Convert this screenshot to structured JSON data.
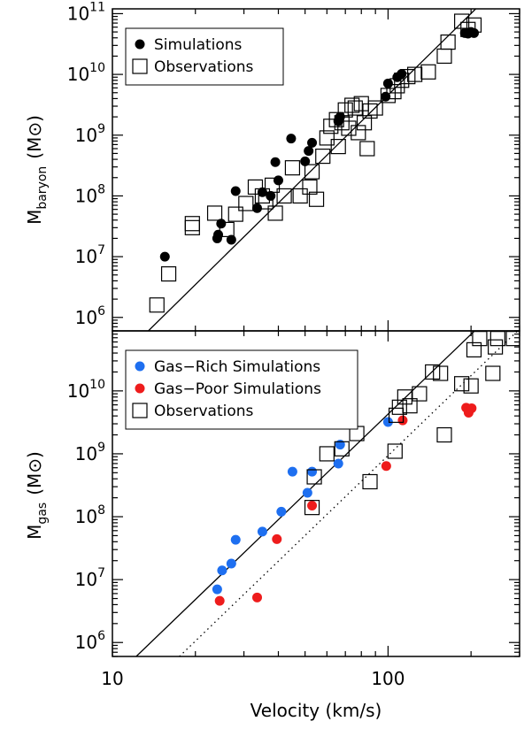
{
  "chart_data": [
    {
      "type": "scatter",
      "panel": "top",
      "xscale": "log",
      "yscale": "log",
      "xlim": [
        10,
        300
      ],
      "ylim": [
        600000,
        120000000000
      ],
      "ylabel_main": "M",
      "ylabel_sub": "baryon",
      "ylabel_unit": "(M⊙)",
      "yticks": [
        {
          "value": 1000000,
          "base": "10",
          "exp": "6"
        },
        {
          "value": 10000000,
          "base": "10",
          "exp": "7"
        },
        {
          "value": 100000000,
          "base": "10",
          "exp": "8"
        },
        {
          "value": 1000000000,
          "base": "10",
          "exp": "9"
        },
        {
          "value": 10000000000,
          "base": "10",
          "exp": "10"
        },
        {
          "value": 100000000000,
          "base": "10",
          "exp": "11"
        }
      ],
      "legend": {
        "placement": "top-left",
        "entries": [
          {
            "label": "Simulations",
            "marker": "filled-circle",
            "color": "#000000"
          },
          {
            "label": "Observations",
            "marker": "open-square",
            "color": "#000000"
          }
        ]
      },
      "series": [
        {
          "name": "Simulations",
          "marker": "filled-circle",
          "color": "#000000",
          "points": [
            [
              15.5,
              10000000
            ],
            [
              24.0,
              20000000
            ],
            [
              24.2,
              23000000
            ],
            [
              24.8,
              35000000
            ],
            [
              27.0,
              19000000
            ],
            [
              28.0,
              120000000
            ],
            [
              33.5,
              63000000
            ],
            [
              35.0,
              115000000
            ],
            [
              37.5,
              100000000
            ],
            [
              39.0,
              360000000
            ],
            [
              40.0,
              180000000
            ],
            [
              44.5,
              880000000
            ],
            [
              50.0,
              370000000
            ],
            [
              51.5,
              550000000
            ],
            [
              53.0,
              750000000
            ],
            [
              66.0,
              1700000000
            ],
            [
              67.0,
              2000000000
            ],
            [
              98.0,
              4300000000
            ],
            [
              100.0,
              7100000000
            ],
            [
              108.0,
              9000000000
            ],
            [
              112.0,
              10200000000
            ],
            [
              190.0,
              48000000000
            ],
            [
              195.0,
              47000000000
            ],
            [
              200.0,
              50000000000
            ],
            [
              205.0,
              48000000000
            ]
          ]
        },
        {
          "name": "Observations",
          "marker": "open-square",
          "color": "#000000",
          "points": [
            [
              14.5,
              1600000
            ],
            [
              16.0,
              5200000
            ],
            [
              19.5,
              30000000
            ],
            [
              19.5,
              35000000
            ],
            [
              23.5,
              52000000
            ],
            [
              26.0,
              28000000
            ],
            [
              28.0,
              50000000
            ],
            [
              30.5,
              75000000
            ],
            [
              33.0,
              140000000
            ],
            [
              35.0,
              100000000
            ],
            [
              36.0,
              80000000
            ],
            [
              38.0,
              150000000
            ],
            [
              39.0,
              52000000
            ],
            [
              42.0,
              100000000
            ],
            [
              45.0,
              290000000
            ],
            [
              48.0,
              100000000
            ],
            [
              52.0,
              140000000
            ],
            [
              53.0,
              250000000
            ],
            [
              55.0,
              88000000
            ],
            [
              58.0,
              450000000
            ],
            [
              60.0,
              900000000
            ],
            [
              62.0,
              1400000000
            ],
            [
              65.0,
              1800000000
            ],
            [
              66.0,
              650000000
            ],
            [
              68.0,
              1600000000
            ],
            [
              70.0,
              2600000000
            ],
            [
              72.0,
              1300000000
            ],
            [
              74.0,
              3100000000
            ],
            [
              76.0,
              2800000000
            ],
            [
              78.0,
              1100000000
            ],
            [
              80.0,
              3300000000
            ],
            [
              82.0,
              1600000000
            ],
            [
              84.0,
              600000000
            ],
            [
              86.0,
              2500000000
            ],
            [
              90.0,
              2800000000
            ],
            [
              100.0,
              4500000000
            ],
            [
              105.0,
              5200000000
            ],
            [
              108.0,
              6500000000
            ],
            [
              112.0,
              8000000000
            ],
            [
              118.0,
              9200000000
            ],
            [
              125.0,
              10000000000
            ],
            [
              140.0,
              11000000000
            ],
            [
              160.0,
              20000000000
            ],
            [
              165.0,
              34000000000
            ],
            [
              185.0,
              75000000000
            ],
            [
              195.0,
              55000000000
            ],
            [
              205.0,
              65000000000
            ]
          ]
        }
      ],
      "fit_lines": [
        {
          "style": "solid",
          "color": "#000000",
          "from": [
            13.5,
            600000
          ],
          "to": [
            208.0,
            120000000000
          ]
        }
      ]
    },
    {
      "type": "scatter",
      "panel": "bottom",
      "xscale": "log",
      "yscale": "log",
      "xlim": [
        10,
        300
      ],
      "ylim": [
        600000,
        90000000000
      ],
      "xlabel": "Velocity (km/s)",
      "xticks": [
        {
          "value": 10,
          "label": "10"
        },
        {
          "value": 100,
          "label": "100"
        }
      ],
      "ylabel_main": "M",
      "ylabel_sub": "gas",
      "ylabel_unit": "(M⊙)",
      "yticks": [
        {
          "value": 1000000,
          "base": "10",
          "exp": "6"
        },
        {
          "value": 10000000,
          "base": "10",
          "exp": "7"
        },
        {
          "value": 100000000,
          "base": "10",
          "exp": "8"
        },
        {
          "value": 1000000000,
          "base": "10",
          "exp": "9"
        },
        {
          "value": 10000000000,
          "base": "10",
          "exp": "10"
        }
      ],
      "legend": {
        "placement": "top-left",
        "entries": [
          {
            "label": "Gas−Rich Simulations",
            "marker": "filled-circle",
            "color": "#1e6ff0"
          },
          {
            "label": "Gas−Poor Simulations",
            "marker": "filled-circle",
            "color": "#ee1c1c"
          },
          {
            "label": "Observations",
            "marker": "open-square",
            "color": "#000000"
          }
        ]
      },
      "series": [
        {
          "name": "Gas−Rich Simulations",
          "marker": "filled-circle",
          "color": "#1e6ff0",
          "points": [
            [
              24.0,
              7000000
            ],
            [
              25.0,
              14000000
            ],
            [
              27.0,
              18000000
            ],
            [
              28.0,
              43000000
            ],
            [
              35.0,
              58000000
            ],
            [
              41.0,
              120000000
            ],
            [
              45.0,
              520000000
            ],
            [
              51.0,
              240000000
            ],
            [
              53.0,
              520000000
            ],
            [
              66.0,
              700000000
            ],
            [
              67.0,
              1400000000
            ],
            [
              100.0,
              3200000000
            ]
          ]
        },
        {
          "name": "Gas−Poor Simulations",
          "marker": "filled-circle",
          "color": "#ee1c1c",
          "points": [
            [
              24.5,
              4600000
            ],
            [
              33.5,
              5200000
            ],
            [
              39.5,
              44000000
            ],
            [
              53.0,
              150000000
            ],
            [
              98.5,
              640000000
            ],
            [
              113.0,
              3400000000
            ],
            [
              192.0,
              5400000000
            ],
            [
              196.0,
              4500000000
            ],
            [
              201.0,
              5300000000
            ]
          ]
        },
        {
          "name": "Observations",
          "marker": "open-square",
          "color": "#000000",
          "points": [
            [
              53.0,
              140000000
            ],
            [
              54.0,
              430000000
            ],
            [
              60.0,
              1000000000
            ],
            [
              68.0,
              1200000000
            ],
            [
              77.0,
              2100000000
            ],
            [
              86.0,
              360000000
            ],
            [
              106.0,
              1100000000
            ],
            [
              107.0,
              4100000000
            ],
            [
              110.0,
              5500000000
            ],
            [
              115.0,
              8000000000
            ],
            [
              120.0,
              5800000000
            ],
            [
              130.0,
              9000000000
            ],
            [
              145.0,
              20000000000
            ],
            [
              155.0,
              19000000000
            ],
            [
              160.0,
              2000000000
            ],
            [
              185.0,
              13000000000
            ],
            [
              200.0,
              12000000000
            ],
            [
              205.0,
              45000000000
            ],
            [
              215.0,
              68000000000
            ],
            [
              240.0,
              19000000000
            ],
            [
              245.0,
              50000000000
            ],
            [
              250.0,
              68000000000
            ],
            [
              285.0,
              68000000000
            ]
          ]
        }
      ],
      "fit_lines": [
        {
          "style": "solid",
          "color": "#000000",
          "from": [
            12.2,
            600000
          ],
          "to": [
            206.0,
            90000000000
          ]
        },
        {
          "style": "dotted",
          "color": "#000000",
          "from": [
            17.5,
            600000
          ],
          "to": [
            295.0,
            90000000000
          ]
        }
      ]
    }
  ]
}
